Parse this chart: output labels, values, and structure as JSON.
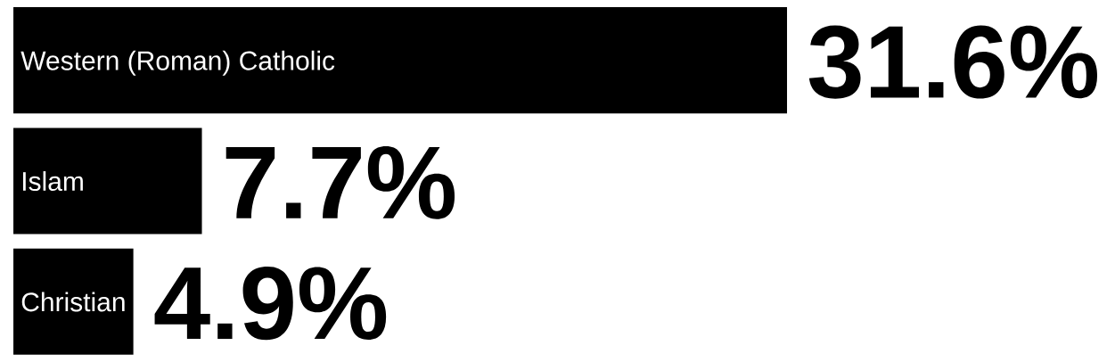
{
  "chart_data": {
    "type": "bar",
    "orientation": "horizontal",
    "categories": [
      "Western (Roman) Catholic",
      "Islam",
      "Christian"
    ],
    "values": [
      31.6,
      7.7,
      4.9
    ],
    "color": "#000000",
    "value_labels": [
      "31.6%",
      "7.7%",
      "4.9%"
    ]
  }
}
